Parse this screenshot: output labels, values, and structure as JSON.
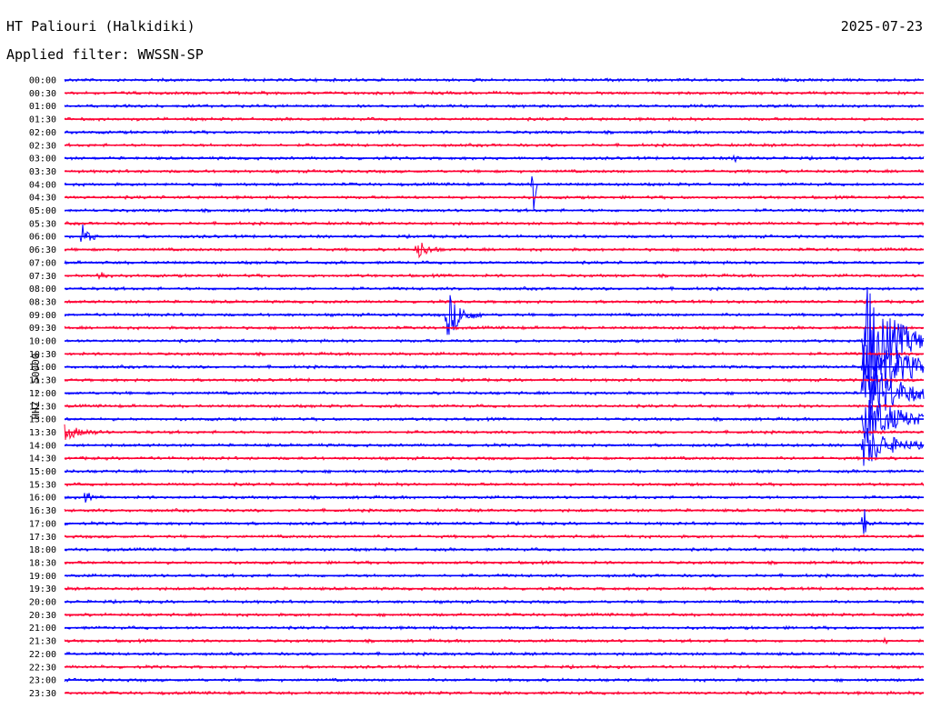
{
  "header": {
    "station": "HT Paliouri (Halkidiki)",
    "date": "2025-07-23",
    "filter": "Applied filter: WWSSN-SP"
  },
  "chart_data": {
    "type": "helicorder",
    "ylabel": "HHZ - 50000",
    "trace_colors": [
      "#0000ff",
      "#ff0033"
    ],
    "rows": [
      "00:00",
      "00:30",
      "01:00",
      "01:30",
      "02:00",
      "02:30",
      "03:00",
      "03:30",
      "04:00",
      "04:30",
      "05:00",
      "05:30",
      "06:00",
      "06:30",
      "07:00",
      "07:30",
      "08:00",
      "08:30",
      "09:00",
      "09:30",
      "10:00",
      "10:30",
      "11:00",
      "11:30",
      "12:00",
      "12:30",
      "13:00",
      "13:30",
      "14:00",
      "14:30",
      "15:00",
      "15:30",
      "16:00",
      "16:30",
      "17:00",
      "17:30",
      "18:00",
      "18:30",
      "19:00",
      "19:30",
      "20:00",
      "20:30",
      "21:00",
      "21:30",
      "22:00",
      "22:30",
      "23:00",
      "23:30"
    ],
    "row_minutes": 30,
    "events": [
      {
        "row": 12,
        "pos": 0.02,
        "amp": 14,
        "dur": 0.02
      },
      {
        "row": 13,
        "pos": 0.41,
        "amp": 12,
        "dur": 0.03
      },
      {
        "row": 18,
        "pos": 0.445,
        "amp": 28,
        "dur": 0.04
      },
      {
        "row": 8,
        "pos": 0.545,
        "amp": 60,
        "dur": 0.006
      },
      {
        "row": 15,
        "pos": 0.04,
        "amp": 6,
        "dur": 0.02
      },
      {
        "row": 27,
        "pos": 0.0,
        "amp": 8,
        "dur": 0.05
      },
      {
        "row": 32,
        "pos": 0.025,
        "amp": 12,
        "dur": 0.008
      },
      {
        "row": 20,
        "pos": 0.93,
        "amp": 70,
        "dur": 0.09
      },
      {
        "row": 22,
        "pos": 0.93,
        "amp": 55,
        "dur": 0.1
      },
      {
        "row": 24,
        "pos": 0.93,
        "amp": 40,
        "dur": 0.1
      },
      {
        "row": 26,
        "pos": 0.93,
        "amp": 30,
        "dur": 0.1
      },
      {
        "row": 28,
        "pos": 0.93,
        "amp": 25,
        "dur": 0.08
      },
      {
        "row": 34,
        "pos": 0.93,
        "amp": 30,
        "dur": 0.006
      },
      {
        "row": 43,
        "pos": 0.955,
        "amp": 12,
        "dur": 0.006
      },
      {
        "row": 6,
        "pos": 0.78,
        "amp": 6,
        "dur": 0.01
      }
    ]
  }
}
